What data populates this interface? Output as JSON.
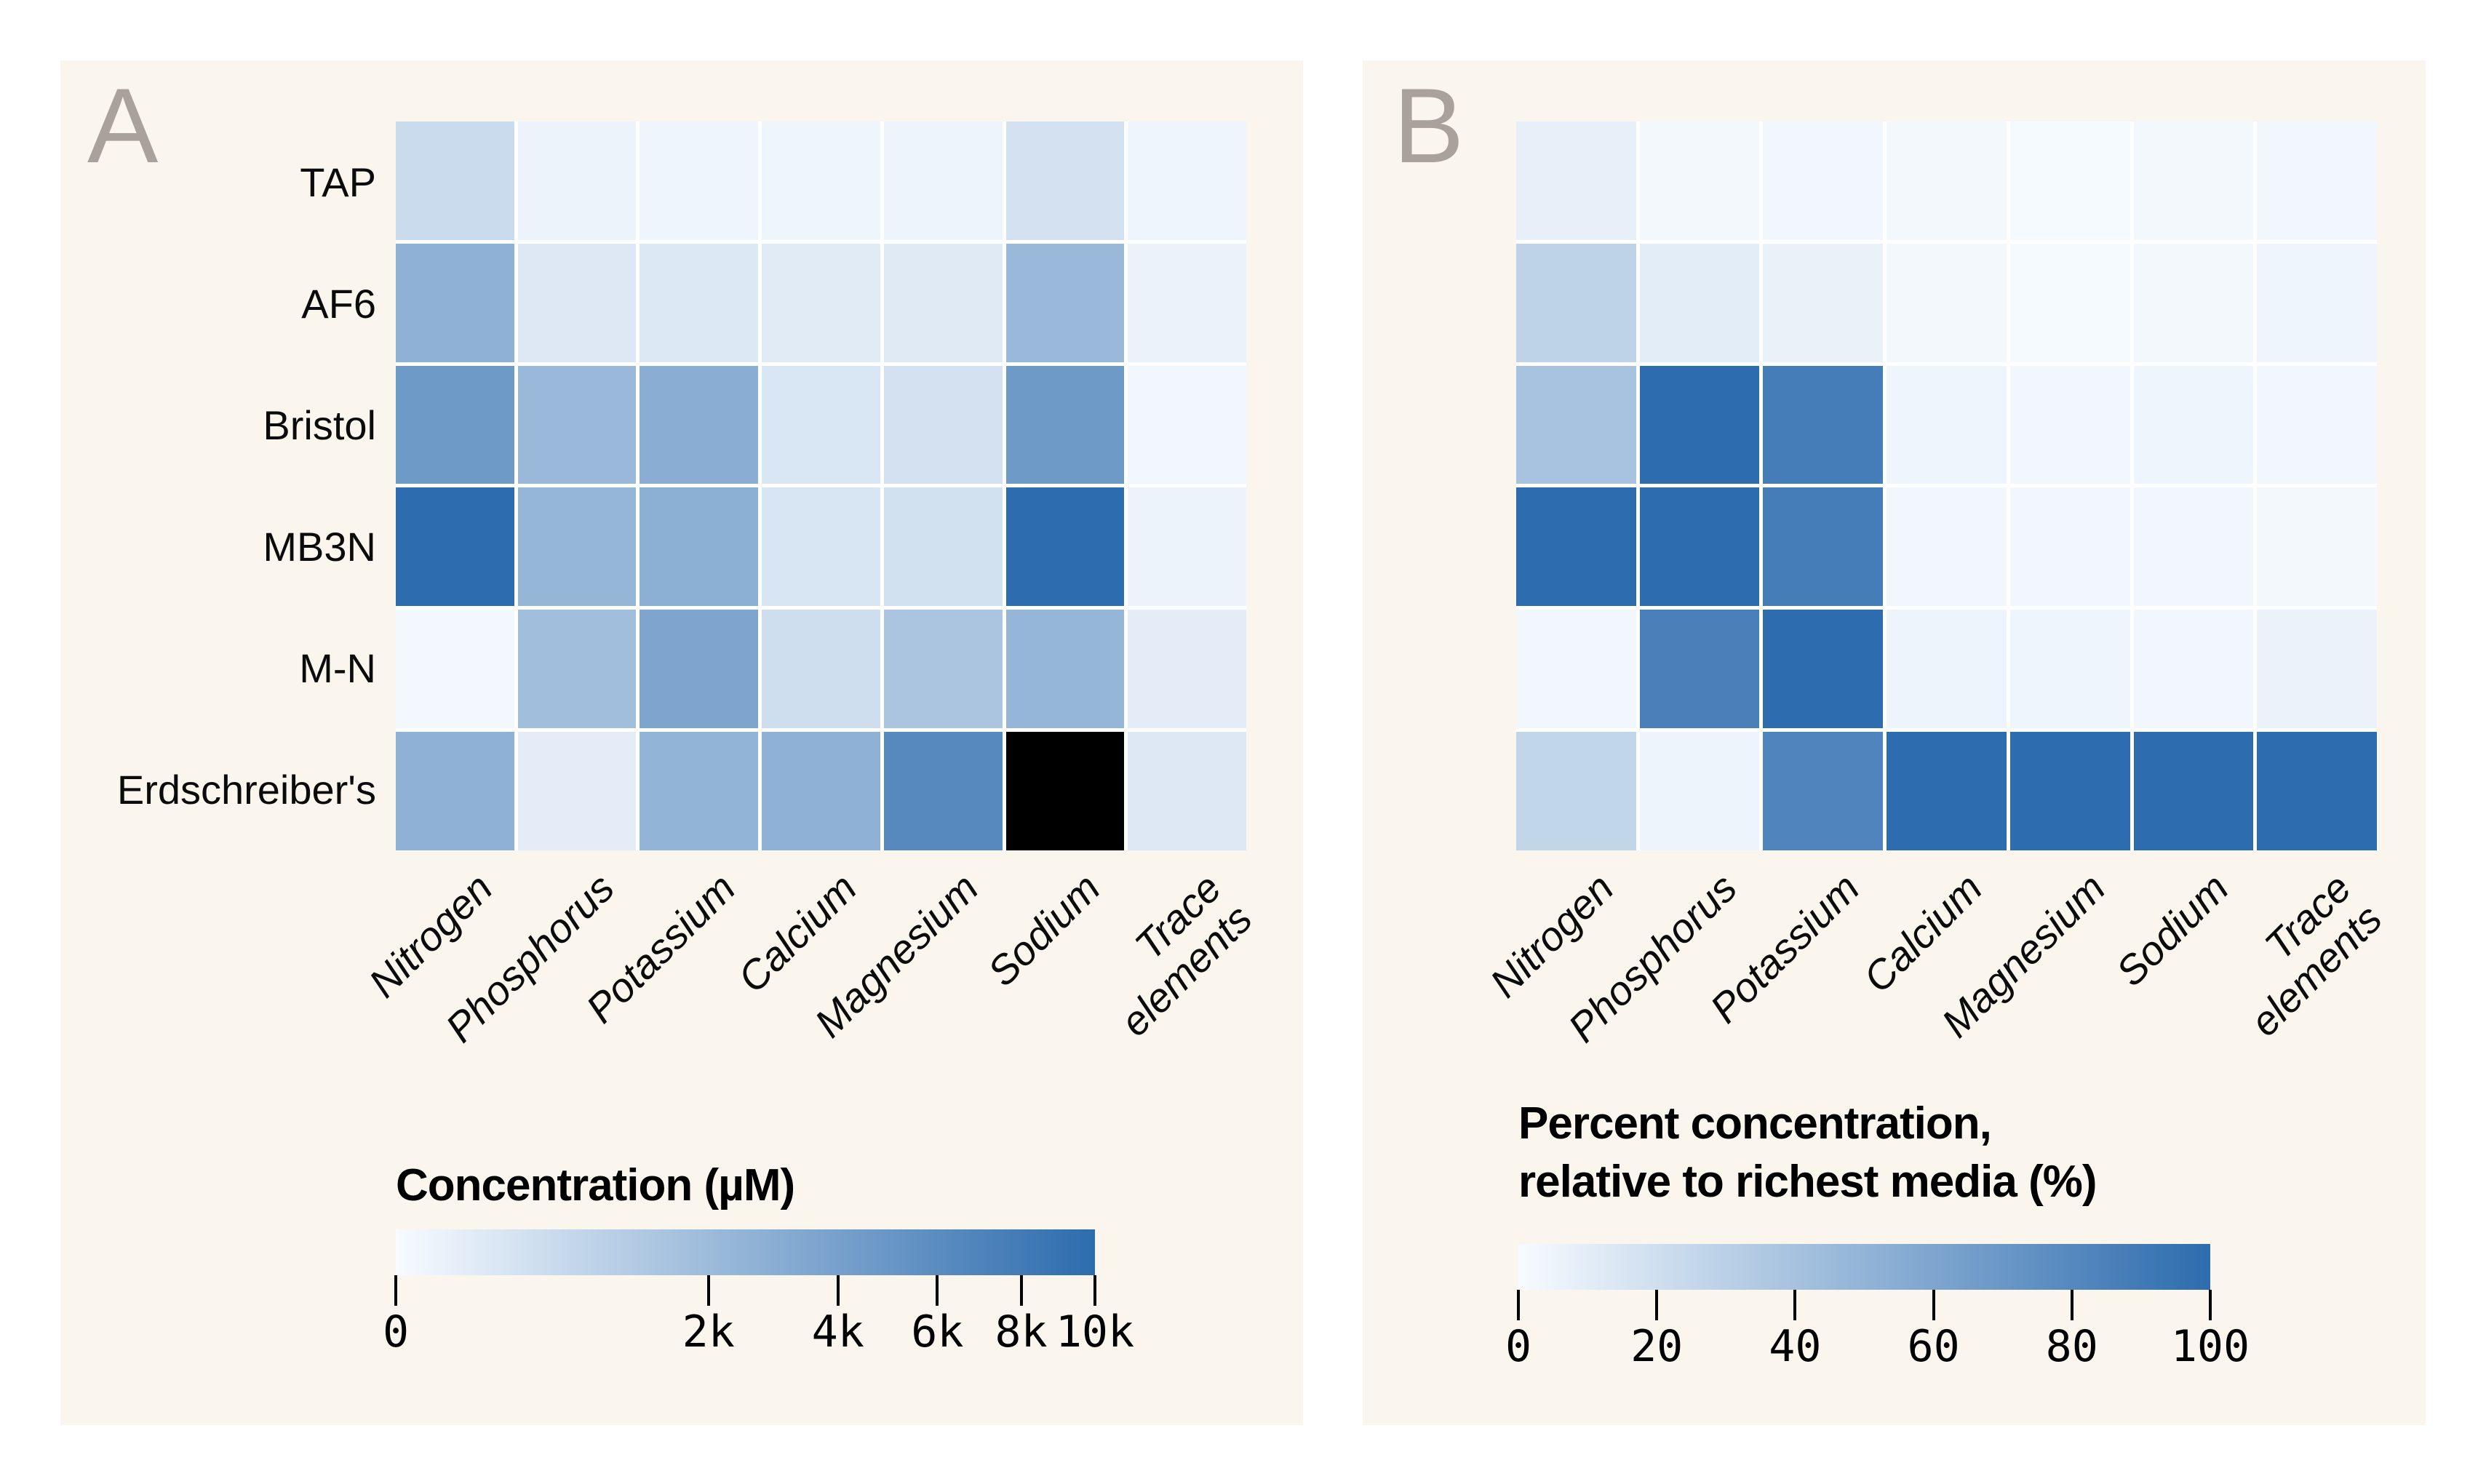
{
  "figure": {
    "panel_a": {
      "label": "A"
    },
    "panel_b": {
      "label": "B"
    },
    "colors": {
      "card_background": "#faf6ed",
      "panel_letter": "#a8a29b",
      "gridline": "#ffffff",
      "gradient_start": "#f7fbff",
      "gradient_end": "#2d6cae",
      "overflow_black": "#000000",
      "text": "#0b0b0b"
    }
  },
  "chart_data": [
    {
      "type": "heatmap",
      "panel": "A",
      "title": "Concentration (µM)",
      "rows": [
        "TAP",
        "AF6",
        "Bristol",
        "MB3N",
        "M-N",
        "Erdschreiber's"
      ],
      "columns": [
        "Nitrogen",
        "Phosphorus",
        "Potassium",
        "Calcium",
        "Magnesium",
        "Sodium",
        "Trace\nelements"
      ],
      "values": [
        [
          500,
          30,
          15,
          20,
          25,
          320,
          15
        ],
        [
          2700,
          170,
          180,
          120,
          140,
          2100,
          40
        ],
        [
          4600,
          2100,
          2900,
          220,
          320,
          4600,
          6
        ],
        [
          10000,
          2300,
          2800,
          240,
          340,
          10000,
          30
        ],
        [
          5,
          1800,
          3600,
          400,
          1400,
          2300,
          90
        ],
        [
          2700,
          90,
          2500,
          2700,
          6300,
          null,
          170
        ]
      ],
      "value_note": "null = exceeds scale maximum, rendered as solid black (Erdschreiber's sodium)",
      "scale": "sqrt",
      "vmin": 0,
      "vmax": 10000,
      "colormap": [
        "#f7fbff",
        "#2d6cae"
      ],
      "overflow_color": "#000000",
      "show_row_labels": true,
      "legend_position": "bottom",
      "grid": true,
      "colorbar_ticks": [
        {
          "label": "0",
          "value": 0
        },
        {
          "label": "2k",
          "value": 2000
        },
        {
          "label": "4k",
          "value": 4000
        },
        {
          "label": "6k",
          "value": 6000
        },
        {
          "label": "8k",
          "value": 8000
        },
        {
          "label": "10k",
          "value": 10000
        }
      ]
    },
    {
      "type": "heatmap",
      "panel": "B",
      "title": "Percent concentration,\nrelative to richest media (%)",
      "rows": [
        "TAP",
        "AF6",
        "Bristol",
        "MB3N",
        "M-N",
        "Erdschreiber's"
      ],
      "columns": [
        "Nitrogen",
        "Phosphorus",
        "Potassium",
        "Calcium",
        "Magnesium",
        "Sodium",
        "Trace\nelements"
      ],
      "values": [
        [
          8,
          2,
          3,
          2,
          1,
          2,
          3
        ],
        [
          28,
          10,
          7,
          2,
          1,
          2,
          4
        ],
        [
          39,
          100,
          88,
          4,
          3,
          4,
          3
        ],
        [
          100,
          100,
          88,
          3,
          3,
          3,
          2
        ],
        [
          3,
          86,
          100,
          5,
          4,
          3,
          6
        ],
        [
          26,
          5,
          83,
          100,
          100,
          100,
          100
        ]
      ],
      "scale": "linear",
      "vmin": 0,
      "vmax": 100,
      "colormap": [
        "#f7fbff",
        "#2d6cae"
      ],
      "show_row_labels": false,
      "legend_position": "bottom",
      "grid": true,
      "colorbar_ticks": [
        {
          "label": "0",
          "value": 0
        },
        {
          "label": "20",
          "value": 20
        },
        {
          "label": "40",
          "value": 40
        },
        {
          "label": "60",
          "value": 60
        },
        {
          "label": "80",
          "value": 80
        },
        {
          "label": "100",
          "value": 100
        }
      ]
    }
  ]
}
